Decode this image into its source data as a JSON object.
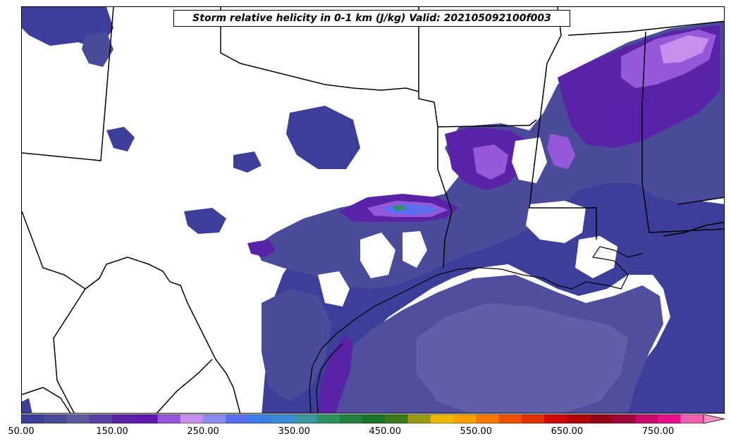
{
  "title": "Storm relative helicity in 0-1 km (J/kg) Valid: 202105092100f003",
  "colorbar": {
    "min": 50,
    "max": 800,
    "step": 25,
    "extend": "max",
    "tick_labels": [
      "50.00",
      "150.00",
      "250.00",
      "350.00",
      "450.00",
      "550.00",
      "650.00",
      "750.00"
    ],
    "tick_values": [
      50,
      150,
      250,
      350,
      450,
      550,
      650,
      750
    ],
    "colors": [
      "#3b3f9a",
      "#4b4b9c",
      "#5e5aa0",
      "#5a3fa3",
      "#5a22a6",
      "#5e18b0",
      "#9558d8",
      "#c890ee",
      "#8a8af0",
      "#5a6ef0",
      "#3d7ee8",
      "#3a8ad8",
      "#3a98a0",
      "#2e9060",
      "#238040",
      "#1a7428",
      "#3a7a18",
      "#9a9a18",
      "#f0b800",
      "#f8a000",
      "#f87800",
      "#f05000",
      "#e03000",
      "#d00808",
      "#b00808",
      "#900818",
      "#a0083a",
      "#c8086a",
      "#e8108a",
      "#f060b0",
      "#f890c8"
    ]
  },
  "legend_colors": {
    "shade_low": "#3b3f9a",
    "shade_mid": "#5a5aa8",
    "shade_light": "#6a64ae",
    "shade_purple": "#5a22a6",
    "shade_violet": "#9558d8",
    "shade_pink": "#c890ee",
    "shade_blue": "#5a6ef0",
    "shade_green": "#2e9060"
  }
}
